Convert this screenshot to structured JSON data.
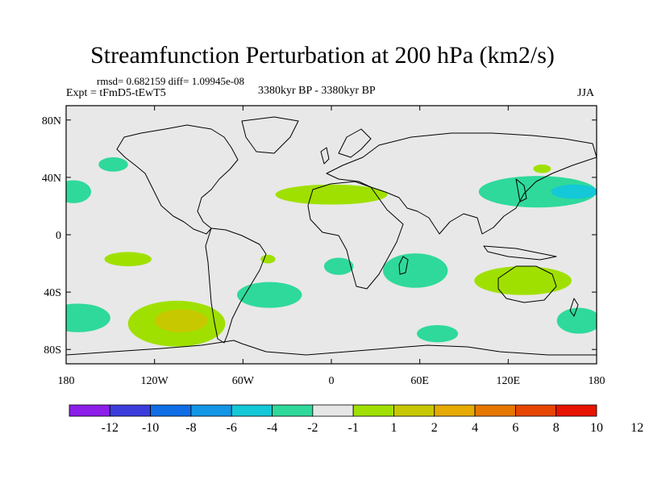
{
  "title": "Streamfunction Perturbation at 200 hPa (km2/s)",
  "stats": "rmsd= 0.682159  diff= 1.09945e-08",
  "experiment": "Expt = tFmD5-tEwT5",
  "period": "3380kyr BP - 3380kyr BP",
  "season": "JJA",
  "map": {
    "lon_range": [
      -180,
      180
    ],
    "lat_range": [
      -90,
      90
    ],
    "lon_ticks": [
      {
        "value": -180,
        "label": "180"
      },
      {
        "value": -120,
        "label": "120W"
      },
      {
        "value": -60,
        "label": "60W"
      },
      {
        "value": 0,
        "label": "0"
      },
      {
        "value": 60,
        "label": "60E"
      },
      {
        "value": 120,
        "label": "120E"
      },
      {
        "value": 180,
        "label": "180"
      }
    ],
    "lat_ticks": [
      {
        "value": 80,
        "label": "80N"
      },
      {
        "value": 40,
        "label": "40N"
      },
      {
        "value": 0,
        "label": "0"
      },
      {
        "value": -40,
        "label": "40S"
      },
      {
        "value": -80,
        "label": "80S"
      }
    ],
    "background_color": "#e8e8e8"
  },
  "anomalies": [
    {
      "lon": -148,
      "lat": 49,
      "rlon": 10,
      "rlat": 5,
      "level": -2,
      "color": "#2fd99b"
    },
    {
      "lon": -175,
      "lat": 30,
      "rlon": 12,
      "rlat": 8,
      "level": -2,
      "color": "#2fd99b"
    },
    {
      "lon": -172,
      "lat": -58,
      "rlon": 22,
      "rlat": 10,
      "level": -2,
      "color": "#2fd99b"
    },
    {
      "lon": -138,
      "lat": -17,
      "rlon": 16,
      "rlat": 5,
      "level": 2,
      "color": "#a0e000"
    },
    {
      "lon": -42,
      "lat": -42,
      "rlon": 22,
      "rlat": 9,
      "level": -2,
      "color": "#2fd99b"
    },
    {
      "lon": -105,
      "lat": -62,
      "rlon": 33,
      "rlat": 16,
      "level": 2,
      "color": "#a0e000"
    },
    {
      "lon": -102,
      "lat": -60,
      "rlon": 18,
      "rlat": 8,
      "level": 4,
      "color": "#c8c800"
    },
    {
      "lon": -43,
      "lat": -17,
      "rlon": 5,
      "rlat": 3,
      "level": 2,
      "color": "#a0e000"
    },
    {
      "lon": 0,
      "lat": 28,
      "rlon": 38,
      "rlat": 7,
      "level": 2,
      "color": "#a0e000"
    },
    {
      "lon": 5,
      "lat": -22,
      "rlon": 10,
      "rlat": 6,
      "level": -2,
      "color": "#2fd99b"
    },
    {
      "lon": 57,
      "lat": -25,
      "rlon": 22,
      "rlat": 12,
      "level": -2,
      "color": "#2fd99b"
    },
    {
      "lon": 130,
      "lat": -32,
      "rlon": 33,
      "rlat": 10,
      "level": 2,
      "color": "#a0e000"
    },
    {
      "lon": 143,
      "lat": 46,
      "rlon": 6,
      "rlat": 3,
      "level": 2,
      "color": "#a0e000"
    },
    {
      "lon": 140,
      "lat": 30,
      "rlon": 40,
      "rlat": 11,
      "level": -2,
      "color": "#2fd99b"
    },
    {
      "lon": 165,
      "lat": 30,
      "rlon": 16,
      "rlat": 5,
      "level": -4,
      "color": "#14c8d7"
    },
    {
      "lon": 72,
      "lat": -69,
      "rlon": 14,
      "rlat": 6,
      "level": -2,
      "color": "#2fd99b"
    },
    {
      "lon": 168,
      "lat": -60,
      "rlon": 15,
      "rlat": 9,
      "level": -2,
      "color": "#2fd99b"
    }
  ],
  "colorbar": {
    "colors": [
      "#8c1ee8",
      "#3c3cdc",
      "#0f6ee6",
      "#1496e6",
      "#14c8d7",
      "#2fd99b",
      "#e6e6e6",
      "#a0e000",
      "#c8c800",
      "#e6aa00",
      "#e67800",
      "#e64600",
      "#e61400"
    ],
    "labels": [
      "-12",
      "-10",
      "-8",
      "-6",
      "-4",
      "-2",
      "-1",
      "1",
      "2",
      "4",
      "6",
      "8",
      "10",
      "12"
    ]
  }
}
